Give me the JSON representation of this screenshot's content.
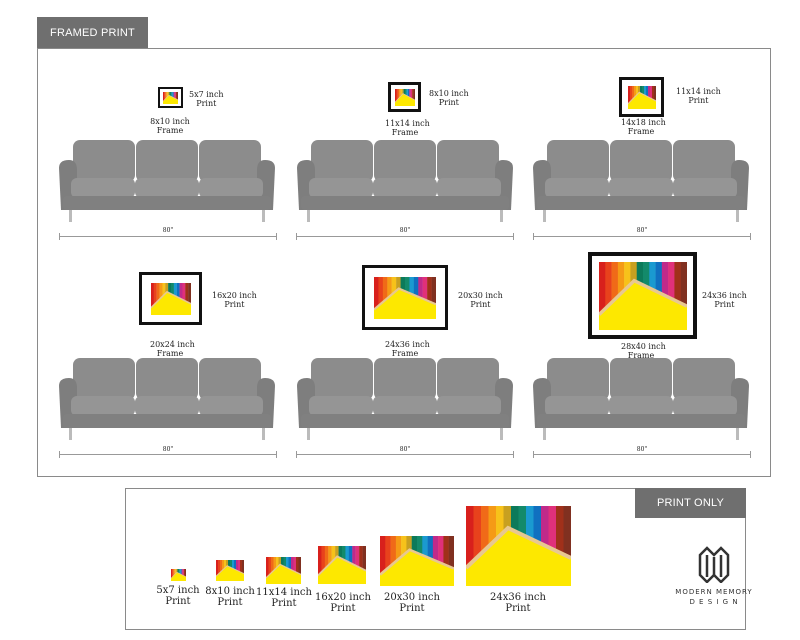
{
  "framed_section": {
    "tab_label": "FRAMED PRINT",
    "dimension_label": "80\"",
    "items": [
      {
        "print": [
          "5x7 inch",
          "Print"
        ],
        "frame": [
          "8x10 inch",
          "Frame"
        ]
      },
      {
        "print": [
          "8x10 inch",
          "Print"
        ],
        "frame": [
          "11x14 inch",
          "Frame"
        ]
      },
      {
        "print": [
          "11x14 inch",
          "Print"
        ],
        "frame": [
          "14x18 inch",
          "Frame"
        ]
      },
      {
        "print": [
          "16x20 inch",
          "Print"
        ],
        "frame": [
          "20x24 inch",
          "Frame"
        ]
      },
      {
        "print": [
          "20x30 inch",
          "Print"
        ],
        "frame": [
          "24x36 inch",
          "Frame"
        ]
      },
      {
        "print": [
          "24x36 inch",
          "Print"
        ],
        "frame": [
          "28x40 inch",
          "Frame"
        ]
      }
    ]
  },
  "print_only_section": {
    "tab_label": "PRINT ONLY",
    "items": [
      [
        "5x7 inch",
        "Print"
      ],
      [
        "8x10 inch",
        "Print"
      ],
      [
        "11x14 inch",
        "Print"
      ],
      [
        "16x20 inch",
        "Print"
      ],
      [
        "20x30 inch",
        "Print"
      ],
      [
        "24x36 inch",
        "Print"
      ]
    ]
  },
  "brand": {
    "line1": "MODERN MEMORY",
    "line2": "D E S I G N"
  },
  "colors": {
    "tab": "#6f6f6f",
    "sofa": "#8c8c8c",
    "art_yellow": "#fde800"
  }
}
